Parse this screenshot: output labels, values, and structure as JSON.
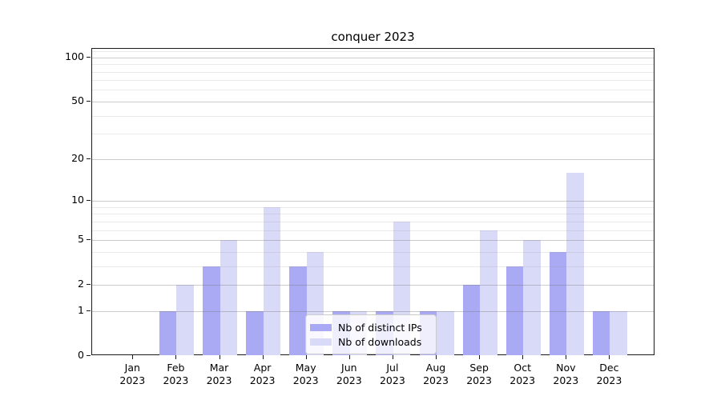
{
  "title": "conquer 2023",
  "colors": {
    "ips": "#a9a9f4",
    "downloads": "#d9d9f8",
    "grid_major": "rgba(120,120,120,0.38)",
    "grid_minor": "rgba(150,150,150,0.20)",
    "axis": "#1a1a1a"
  },
  "legend": {
    "items": [
      {
        "label": "Nb of distinct IPs",
        "color_key": "ips"
      },
      {
        "label": "Nb of downloads",
        "color_key": "downloads"
      }
    ]
  },
  "chart_data": {
    "type": "bar",
    "title": "conquer 2023",
    "scale": "log1p",
    "categories": [
      "Jan 2023",
      "Feb 2023",
      "Mar 2023",
      "Apr 2023",
      "May 2023",
      "Jun 2023",
      "Jul 2023",
      "Aug 2023",
      "Sep 2023",
      "Oct 2023",
      "Nov 2023",
      "Dec 2023"
    ],
    "x_tick_months": [
      "Jan",
      "Feb",
      "Mar",
      "Apr",
      "May",
      "Jun",
      "Jul",
      "Aug",
      "Sep",
      "Oct",
      "Nov",
      "Dec"
    ],
    "x_tick_year": "2023",
    "series": [
      {
        "name": "Nb of distinct IPs",
        "values": [
          0,
          1,
          3,
          1,
          3,
          1,
          1,
          1,
          2,
          3,
          4,
          1
        ]
      },
      {
        "name": "Nb of downloads",
        "values": [
          0,
          2,
          5,
          9,
          4,
          1,
          7,
          1,
          6,
          5,
          16,
          1
        ]
      }
    ],
    "y_ticks": [
      0,
      1,
      2,
      5,
      10,
      20,
      50,
      100
    ],
    "y_tick_labels": [
      "0",
      "1",
      "2",
      "5",
      "10",
      "20",
      "50",
      "100"
    ],
    "y_minor_ticks": [
      3,
      4,
      6,
      7,
      8,
      9,
      30,
      40,
      60,
      70,
      80,
      90,
      110
    ],
    "ylim": [
      0,
      115
    ],
    "xlabel": "",
    "ylabel": "",
    "grid": "both",
    "grid_above_bars": true,
    "legend_position": "lower center"
  }
}
